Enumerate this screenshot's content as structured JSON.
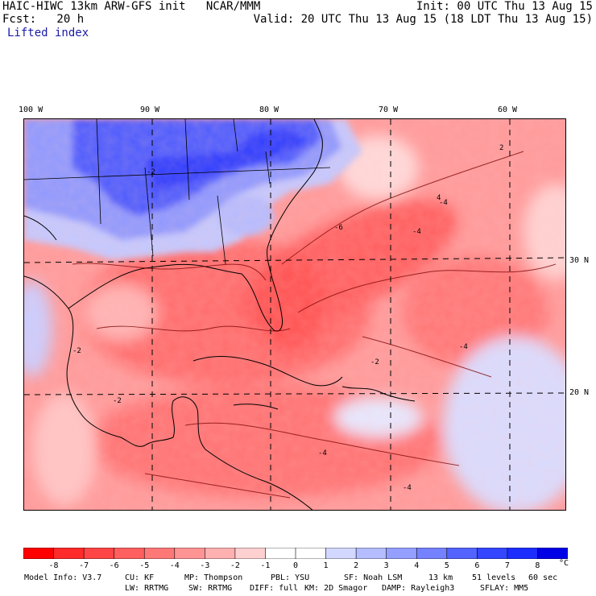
{
  "header": {
    "model_line": "HAIC-HIWC 13km ARW-GFS init   NCAR/MMM",
    "forecast_line": "Fcst:   20 h",
    "variable": "Lifted index",
    "init_line": "Init: 00 UTC Thu 13 Aug 15",
    "valid_line": "Valid: 20 UTC Thu 13 Aug 15 (18 LDT Thu 13 Aug 15)"
  },
  "map": {
    "lon_labels": [
      "100 W",
      "90 W",
      "80 W",
      "70 W",
      "60 W"
    ],
    "lat_labels": [
      "30 N",
      "20 N"
    ],
    "contour_labels": [
      "-2",
      "-4",
      "-4",
      "-6",
      "-2",
      "2",
      "-4",
      "-2",
      "-4",
      "-4",
      "4",
      "-2"
    ]
  },
  "colorbar": {
    "ticks": [
      "-8",
      "-7",
      "-6",
      "-5",
      "-4",
      "-3",
      "-2",
      "-1",
      "0",
      "1",
      "2",
      "3",
      "4",
      "5",
      "6",
      "7",
      "8"
    ],
    "unit": "°C",
    "colors": [
      "#ff0000",
      "#ff2a2a",
      "#ff4545",
      "#ff5f5f",
      "#ff7878",
      "#ff9494",
      "#ffb0b0",
      "#ffd0d0",
      "#ffffff",
      "#ffffff",
      "#d2d8ff",
      "#b4bdff",
      "#949fff",
      "#7482ff",
      "#5363ff",
      "#3446ff",
      "#1d2dff",
      "#0000e6"
    ]
  },
  "footer": {
    "model_info": "Model Info: V3.7",
    "cu": "CU: KF",
    "mp": "MP: Thompson",
    "pbl": "PBL: YSU",
    "sf": "SF: Noah LSM",
    "res": "13 km",
    "levels": "51 levels",
    "dt": "60 sec",
    "lw": "LW: RRTMG",
    "sw": "SW: RRTMG",
    "diff": "DIFF: full",
    "km": "KM: 2D Smagor",
    "damp": "DAMP: Rayleigh3",
    "sflay": "SFLAY: MM5"
  }
}
